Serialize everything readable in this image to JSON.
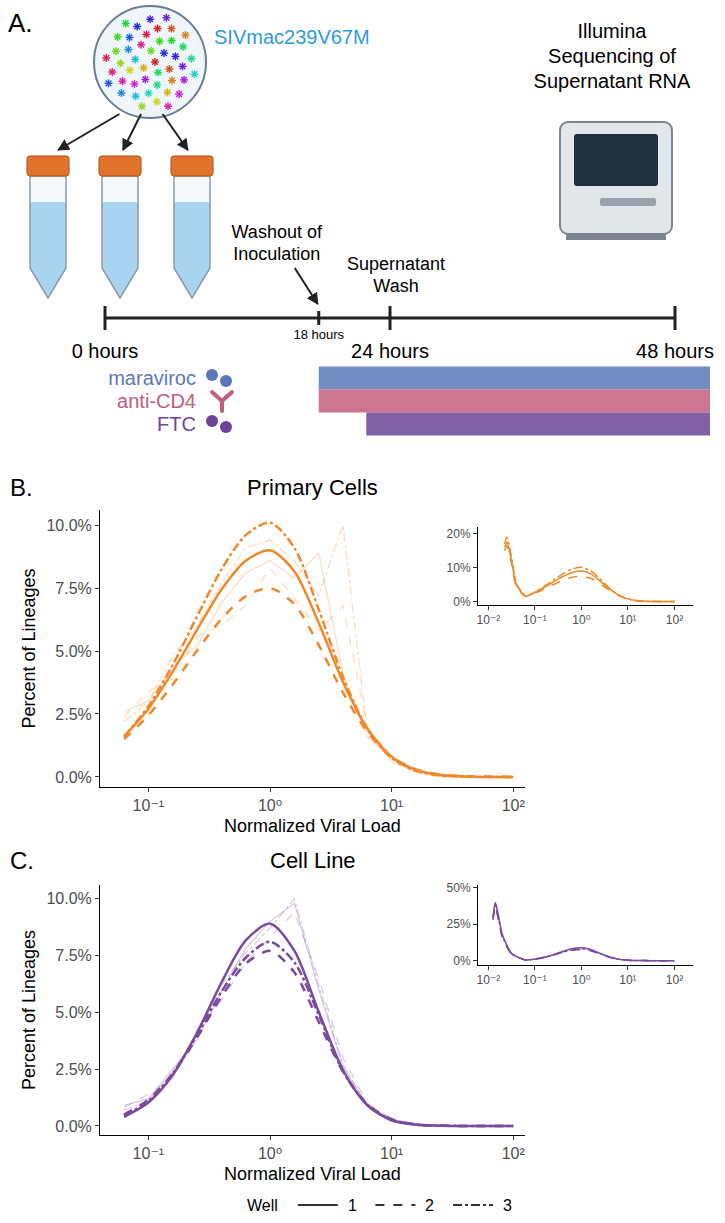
{
  "diagram": {
    "panel_label": "A.",
    "virus": "SIVmac239V67M",
    "instrument": "Illumina Sequencing of Supernatant RNA",
    "timeline": [
      {
        "value": 0,
        "label": "0 hours"
      },
      {
        "value": 18,
        "label": "18 hours"
      },
      {
        "value": 24,
        "label": "24 hours"
      },
      {
        "value": 48,
        "label": "48 hours"
      }
    ],
    "events": [
      {
        "label": "Washout of Inoculation",
        "at_hours": 18
      },
      {
        "label": "Supernatant Wash",
        "at_hours": 24
      }
    ],
    "treatments": [
      {
        "name": "maraviroc",
        "color": "#5a78b8",
        "start_hours": 18
      },
      {
        "name": "anti-CD4",
        "color": "#c45c7c",
        "start_hours": 18
      },
      {
        "name": "FTC",
        "color": "#6b4499",
        "start_hours": 22
      }
    ]
  },
  "chart_data": [
    {
      "panel_label": "B.",
      "type": "line",
      "title": "Primary Cells",
      "x_label": "Normalized Viral Load",
      "y_label": "Percent of Lineages",
      "log": "x",
      "grid": false,
      "color": "#f0882a",
      "x": [
        0.0631,
        0.1,
        0.1585,
        0.2512,
        0.3981,
        0.631,
        1,
        1.585,
        2.512,
        3.981,
        6.31,
        10,
        15.85,
        25.12,
        39.81,
        63.1,
        100
      ],
      "xlim": [
        0.04,
        125
      ],
      "xticks": [
        {
          "value": 0.1,
          "label": "10⁻¹"
        },
        {
          "value": 1,
          "label": "10⁰"
        },
        {
          "value": 10,
          "label": "10¹"
        },
        {
          "value": 100,
          "label": "10²"
        }
      ],
      "ylim": [
        -0.4,
        10.6
      ],
      "yticks": [
        {
          "value": 0,
          "label": "0.0%"
        },
        {
          "value": 2.5,
          "label": "2.5%"
        },
        {
          "value": 5,
          "label": "5.0%"
        },
        {
          "value": 7.5,
          "label": "7.5%"
        },
        {
          "value": 10,
          "label": "10.0%"
        }
      ],
      "series": [
        {
          "name": "1",
          "line_style": "solid",
          "values": [
            1.6,
            2.71,
            4.18,
            5.84,
            7.43,
            8.58,
            9.0,
            8.17,
            6.12,
            3.77,
            1.92,
            0.8,
            0.28,
            0.08,
            0.02,
            0,
            0
          ],
          "raw": [
            2.6,
            3.0,
            4.4,
            5.2,
            6.9,
            8.1,
            8.6,
            7.9,
            8.9,
            4.1,
            1.6,
            0.7,
            0.2,
            0.1,
            0,
            0,
            0
          ]
        },
        {
          "name": "2",
          "line_style": "dashed",
          "values": [
            1.5,
            2.45,
            3.67,
            5.02,
            6.27,
            7.17,
            7.5,
            6.86,
            5.24,
            3.35,
            1.79,
            0.8,
            0.3,
            0.09,
            0.03,
            0.01,
            0
          ],
          "raw": [
            2.4,
            3.4,
            3.9,
            5.6,
            6.0,
            6.8,
            8.3,
            7.1,
            5.8,
            6.8,
            2.0,
            0.8,
            0.3,
            0.1,
            0,
            0,
            0
          ]
        },
        {
          "name": "3",
          "line_style": "dashdot",
          "values": [
            1.6,
            2.81,
            4.45,
            6.37,
            8.23,
            9.6,
            10.1,
            9.1,
            6.66,
            3.97,
            1.92,
            0.75,
            0.24,
            0.06,
            0.01,
            0,
            0
          ],
          "raw": [
            2.2,
            3.0,
            4.8,
            6.0,
            7.7,
            9.1,
            9.4,
            8.6,
            7.2,
            10.0,
            1.8,
            0.6,
            0.2,
            0.0,
            0,
            0,
            0
          ]
        }
      ],
      "inset": {
        "type": "line",
        "log": "x",
        "grid": false,
        "x": [
          0.0224,
          0.0251,
          0.0316,
          0.0398,
          0.0631,
          0.1,
          0.1585,
          0.2512,
          0.3981,
          0.631,
          1,
          1.585,
          2.512,
          3.981,
          6.31,
          10,
          15.85,
          25.12,
          39.81,
          63.1,
          100
        ],
        "xlim": [
          0.006,
          250
        ],
        "xticks": [
          {
            "value": 0.01,
            "label": "10⁻²"
          },
          {
            "value": 0.1,
            "label": "10⁻¹"
          },
          {
            "value": 1,
            "label": "10⁰"
          },
          {
            "value": 10,
            "label": "10¹"
          },
          {
            "value": 100,
            "label": "10²"
          }
        ],
        "ylim": [
          -1,
          22
        ],
        "yticks": [
          {
            "value": 0,
            "label": "0%"
          },
          {
            "value": 10,
            "label": "10%"
          },
          {
            "value": 20,
            "label": "20%"
          }
        ],
        "series": [
          {
            "name": "1",
            "line_style": "solid",
            "values": [
              16,
              17.5,
              12,
              5,
              1.6,
              2.7,
              4.2,
              5.8,
              7.4,
              8.6,
              9.0,
              8.2,
              6.1,
              3.8,
              1.9,
              0.8,
              0.28,
              0.08,
              0.02,
              0,
              0
            ]
          },
          {
            "name": "2",
            "line_style": "dashed",
            "values": [
              15,
              16.5,
              11,
              4.5,
              1.5,
              2.45,
              3.7,
              5.0,
              6.3,
              7.2,
              7.5,
              6.9,
              5.2,
              3.4,
              1.8,
              0.8,
              0.3,
              0.09,
              0.03,
              0.01,
              0
            ]
          },
          {
            "name": "3",
            "line_style": "dashdot",
            "values": [
              17,
              19,
              13,
              5.5,
              1.6,
              2.8,
              4.5,
              6.4,
              8.2,
              9.6,
              10.1,
              9.1,
              6.7,
              4.0,
              1.9,
              0.75,
              0.24,
              0.06,
              0.01,
              0,
              0
            ]
          }
        ]
      }
    },
    {
      "panel_label": "C.",
      "type": "line",
      "title": "Cell Line",
      "x_label": "Normalized Viral Load",
      "y_label": "Percent of Lineages",
      "log": "x",
      "grid": false,
      "color": "#7a4a9e",
      "legend": "bottom",
      "legend_title": "Well",
      "x": [
        0.0631,
        0.1,
        0.1585,
        0.2512,
        0.3981,
        0.631,
        1,
        1.585,
        2.512,
        3.981,
        6.31,
        10,
        15.85,
        25.12,
        39.81,
        63.1,
        100
      ],
      "xlim": [
        0.04,
        125
      ],
      "xticks": [
        {
          "value": 0.1,
          "label": "10⁻¹"
        },
        {
          "value": 1,
          "label": "10⁰"
        },
        {
          "value": 10,
          "label": "10¹"
        },
        {
          "value": 100,
          "label": "10²"
        }
      ],
      "ylim": [
        -0.4,
        10.6
      ],
      "yticks": [
        {
          "value": 0,
          "label": "0.0%"
        },
        {
          "value": 2.5,
          "label": "2.5%"
        },
        {
          "value": 5,
          "label": "5.0%"
        },
        {
          "value": 7.5,
          "label": "7.5%"
        },
        {
          "value": 10,
          "label": "10.0%"
        }
      ],
      "series": [
        {
          "name": "1",
          "line_style": "solid",
          "values": [
            0.4,
            1.03,
            2.24,
            4.1,
            6.3,
            8.16,
            8.9,
            7.71,
            5.03,
            2.46,
            0.91,
            0.25,
            0.05,
            0.01,
            0,
            0,
            0
          ],
          "raw": [
            0.9,
            1.2,
            2.5,
            3.8,
            5.9,
            7.8,
            9.0,
            9.8,
            6.0,
            2.6,
            0.9,
            0.2,
            0.1,
            0,
            0,
            0,
            0
          ]
        },
        {
          "name": "2",
          "line_style": "dashed",
          "values": [
            0.5,
            1.15,
            2.29,
            3.89,
            5.68,
            7.14,
            7.7,
            6.76,
            4.58,
            2.39,
            0.96,
            0.3,
            0.07,
            0.01,
            0,
            0,
            0
          ],
          "raw": [
            0.8,
            1.4,
            2.1,
            4.2,
            5.5,
            7.2,
            8.3,
            9.4,
            6.5,
            3.0,
            1.0,
            0.3,
            0.1,
            0,
            0,
            0,
            0
          ]
        },
        {
          "name": "3",
          "line_style": "dashdot",
          "values": [
            0.45,
            1.1,
            2.3,
            4.0,
            5.9,
            7.4,
            8.1,
            7.2,
            4.9,
            2.4,
            0.93,
            0.27,
            0.06,
            0.01,
            0,
            0,
            0
          ],
          "raw": [
            0.7,
            1.1,
            2.4,
            4.0,
            6.2,
            7.6,
            8.7,
            10.0,
            6.2,
            2.7,
            0.9,
            0.2,
            0.1,
            0,
            0,
            0,
            0
          ]
        }
      ],
      "inset": {
        "type": "line",
        "log": "x",
        "grid": false,
        "x": [
          0.0126,
          0.0141,
          0.0158,
          0.02,
          0.0316,
          0.0631,
          0.1,
          0.1585,
          0.2512,
          0.3981,
          0.631,
          1,
          1.585,
          2.512,
          3.981,
          6.31,
          10,
          15.85,
          25.12,
          39.81,
          63.1,
          100
        ],
        "xlim": [
          0.006,
          250
        ],
        "xticks": [
          {
            "value": 0.01,
            "label": "10⁻²"
          },
          {
            "value": 0.1,
            "label": "10⁻¹"
          },
          {
            "value": 1,
            "label": "10⁰"
          },
          {
            "value": 10,
            "label": "10¹"
          },
          {
            "value": 100,
            "label": "10²"
          }
        ],
        "ylim": [
          -3,
          52
        ],
        "yticks": [
          {
            "value": 0,
            "label": "0%"
          },
          {
            "value": 25,
            "label": "25%"
          },
          {
            "value": 50,
            "label": "50%"
          }
        ],
        "series": [
          {
            "name": "1",
            "line_style": "solid",
            "values": [
              30,
              40,
              34,
              18,
              5,
              0.4,
              1.0,
              2.2,
              4.1,
              6.3,
              8.2,
              8.9,
              7.7,
              5.0,
              2.5,
              0.9,
              0.25,
              0.05,
              0,
              0,
              0,
              0
            ]
          },
          {
            "name": "2",
            "line_style": "dashed",
            "values": [
              28,
              37,
              31,
              16,
              4.5,
              0.5,
              1.15,
              2.3,
              3.9,
              5.7,
              7.1,
              7.7,
              6.8,
              4.6,
              2.4,
              0.96,
              0.3,
              0.07,
              0.01,
              0,
              0,
              0
            ]
          },
          {
            "name": "3",
            "line_style": "dashdot",
            "values": [
              29,
              38,
              32,
              17,
              4.8,
              0.45,
              1.1,
              2.3,
              4.0,
              5.9,
              7.4,
              8.1,
              7.2,
              4.9,
              2.4,
              0.93,
              0.27,
              0.06,
              0.01,
              0,
              0,
              0
            ]
          }
        ]
      }
    }
  ]
}
